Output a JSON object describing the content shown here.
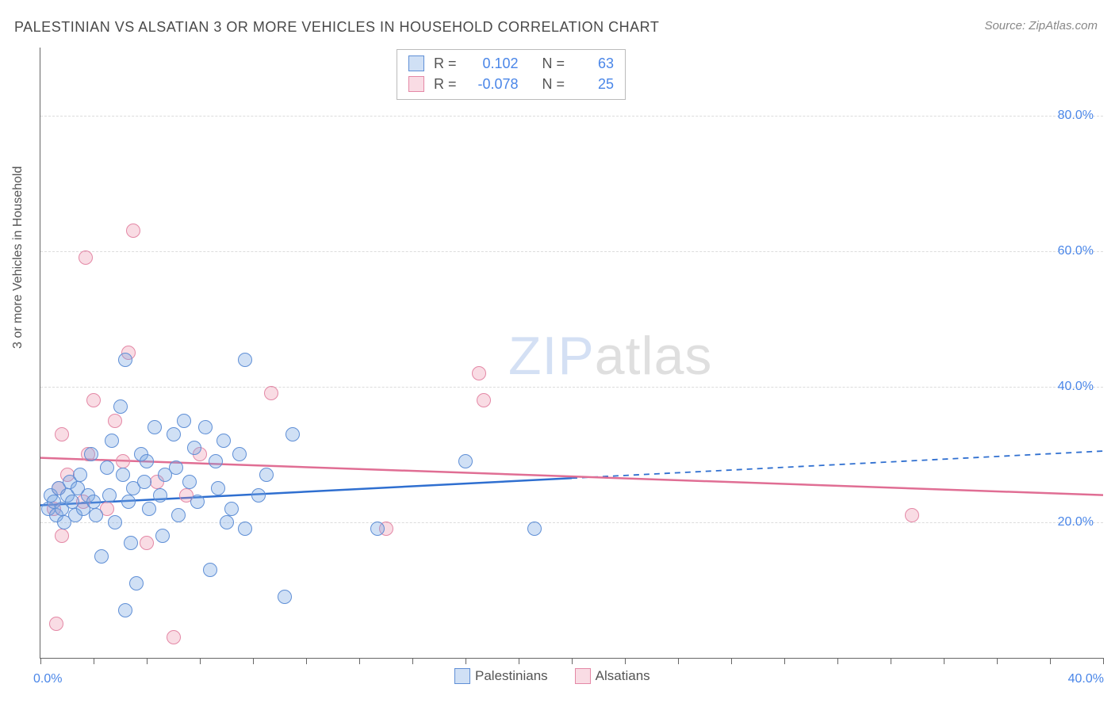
{
  "title": "PALESTINIAN VS ALSATIAN 3 OR MORE VEHICLES IN HOUSEHOLD CORRELATION CHART",
  "source": "Source: ZipAtlas.com",
  "watermark_zip": "ZIP",
  "watermark_atlas": "atlas",
  "ylabel": "3 or more Vehicles in Household",
  "chart": {
    "type": "scatter",
    "background_color": "#ffffff",
    "grid_color": "#dcdcdc",
    "axis_color": "#666666",
    "label_color": "#4a86e8",
    "label_fontsize": 16,
    "title_fontsize": 18,
    "title_color": "#4a4a4a",
    "marker_radius": 9,
    "xlim": [
      0,
      40
    ],
    "ylim": [
      0,
      90
    ],
    "ytick_labels": [
      {
        "v": 20,
        "label": "20.0%"
      },
      {
        "v": 40,
        "label": "40.0%"
      },
      {
        "v": 60,
        "label": "60.0%"
      },
      {
        "v": 80,
        "label": "80.0%"
      }
    ],
    "xtick_positions": [
      0,
      2,
      4,
      6,
      8,
      10,
      12,
      14,
      16,
      18,
      20,
      22,
      24,
      26,
      28,
      30,
      32,
      34,
      36,
      38,
      40
    ],
    "xtick_label_left": {
      "v": 0,
      "label": "0.0%"
    },
    "xtick_label_right": {
      "v": 40,
      "label": "40.0%"
    },
    "series": {
      "palestinians": {
        "label": "Palestinians",
        "fill_color": "rgba(120,165,225,0.35)",
        "stroke_color": "#5f8fd6",
        "line_color": "#2f6fd0",
        "line_width": 2.5,
        "R": "0.102",
        "N": "63",
        "trend_start": {
          "x": 0,
          "y": 22.5
        },
        "trend_solid_end": {
          "x": 20,
          "y": 26.5
        },
        "trend_dash_end": {
          "x": 40,
          "y": 30.5
        },
        "points": [
          {
            "x": 0.3,
            "y": 22
          },
          {
            "x": 0.4,
            "y": 24
          },
          {
            "x": 0.5,
            "y": 23
          },
          {
            "x": 0.6,
            "y": 21
          },
          {
            "x": 0.7,
            "y": 25
          },
          {
            "x": 0.8,
            "y": 22
          },
          {
            "x": 0.9,
            "y": 20
          },
          {
            "x": 1.0,
            "y": 24
          },
          {
            "x": 1.1,
            "y": 26
          },
          {
            "x": 1.2,
            "y": 23
          },
          {
            "x": 1.3,
            "y": 21
          },
          {
            "x": 1.4,
            "y": 25
          },
          {
            "x": 1.5,
            "y": 27
          },
          {
            "x": 1.6,
            "y": 22
          },
          {
            "x": 1.8,
            "y": 24
          },
          {
            "x": 1.9,
            "y": 30
          },
          {
            "x": 2.0,
            "y": 23
          },
          {
            "x": 2.1,
            "y": 21
          },
          {
            "x": 2.3,
            "y": 15
          },
          {
            "x": 2.5,
            "y": 28
          },
          {
            "x": 2.6,
            "y": 24
          },
          {
            "x": 2.7,
            "y": 32
          },
          {
            "x": 2.8,
            "y": 20
          },
          {
            "x": 3.0,
            "y": 37
          },
          {
            "x": 3.1,
            "y": 27
          },
          {
            "x": 3.2,
            "y": 44
          },
          {
            "x": 3.3,
            "y": 23
          },
          {
            "x": 3.4,
            "y": 17
          },
          {
            "x": 3.5,
            "y": 25
          },
          {
            "x": 3.6,
            "y": 11
          },
          {
            "x": 3.2,
            "y": 7
          },
          {
            "x": 3.8,
            "y": 30
          },
          {
            "x": 3.9,
            "y": 26
          },
          {
            "x": 4.0,
            "y": 29
          },
          {
            "x": 4.1,
            "y": 22
          },
          {
            "x": 4.3,
            "y": 34
          },
          {
            "x": 4.5,
            "y": 24
          },
          {
            "x": 4.6,
            "y": 18
          },
          {
            "x": 4.7,
            "y": 27
          },
          {
            "x": 5.0,
            "y": 33
          },
          {
            "x": 5.1,
            "y": 28
          },
          {
            "x": 5.2,
            "y": 21
          },
          {
            "x": 5.4,
            "y": 35
          },
          {
            "x": 5.6,
            "y": 26
          },
          {
            "x": 5.8,
            "y": 31
          },
          {
            "x": 5.9,
            "y": 23
          },
          {
            "x": 6.2,
            "y": 34
          },
          {
            "x": 6.4,
            "y": 13
          },
          {
            "x": 6.6,
            "y": 29
          },
          {
            "x": 6.7,
            "y": 25
          },
          {
            "x": 6.9,
            "y": 32
          },
          {
            "x": 7.0,
            "y": 20
          },
          {
            "x": 7.2,
            "y": 22
          },
          {
            "x": 7.5,
            "y": 30
          },
          {
            "x": 7.7,
            "y": 19
          },
          {
            "x": 7.7,
            "y": 44
          },
          {
            "x": 8.2,
            "y": 24
          },
          {
            "x": 8.5,
            "y": 27
          },
          {
            "x": 9.2,
            "y": 9
          },
          {
            "x": 9.5,
            "y": 33
          },
          {
            "x": 12.7,
            "y": 19
          },
          {
            "x": 16.0,
            "y": 29
          },
          {
            "x": 18.6,
            "y": 19
          }
        ]
      },
      "alsatians": {
        "label": "Alsatians",
        "fill_color": "rgba(235,140,165,0.30)",
        "stroke_color": "#e488a6",
        "line_color": "#e06e94",
        "line_width": 2.5,
        "R": "-0.078",
        "N": "25",
        "trend_start": {
          "x": 0,
          "y": 29.5
        },
        "trend_end": {
          "x": 40,
          "y": 24.0
        },
        "points": [
          {
            "x": 0.5,
            "y": 22
          },
          {
            "x": 0.7,
            "y": 25
          },
          {
            "x": 0.8,
            "y": 18
          },
          {
            "x": 0.8,
            "y": 33
          },
          {
            "x": 1.0,
            "y": 27
          },
          {
            "x": 0.6,
            "y": 5
          },
          {
            "x": 1.6,
            "y": 23
          },
          {
            "x": 1.7,
            "y": 59
          },
          {
            "x": 1.8,
            "y": 30
          },
          {
            "x": 2.0,
            "y": 38
          },
          {
            "x": 2.5,
            "y": 22
          },
          {
            "x": 2.8,
            "y": 35
          },
          {
            "x": 3.1,
            "y": 29
          },
          {
            "x": 3.3,
            "y": 45
          },
          {
            "x": 3.5,
            "y": 63
          },
          {
            "x": 4.0,
            "y": 17
          },
          {
            "x": 4.4,
            "y": 26
          },
          {
            "x": 5.0,
            "y": 3
          },
          {
            "x": 5.5,
            "y": 24
          },
          {
            "x": 6.0,
            "y": 30
          },
          {
            "x": 8.7,
            "y": 39
          },
          {
            "x": 13.0,
            "y": 19
          },
          {
            "x": 16.7,
            "y": 38
          },
          {
            "x": 16.5,
            "y": 42
          },
          {
            "x": 32.8,
            "y": 21
          }
        ]
      }
    },
    "legend_top": {
      "R_label": "R =",
      "N_label": "N ="
    }
  }
}
